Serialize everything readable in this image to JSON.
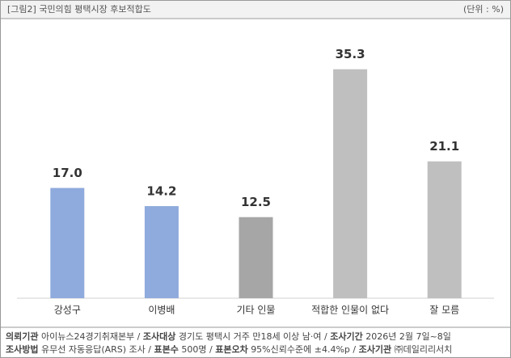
{
  "chart_data": {
    "type": "bar",
    "title": "[그림2] 국민의힘 평택시장 후보적합도",
    "unit": "(단위 : %)",
    "categories": [
      "강성구",
      "이병배",
      "기타 인물",
      "적합한 인물이 없다",
      "잘 모름"
    ],
    "values": [
      17.0,
      14.2,
      12.5,
      35.3,
      21.1
    ],
    "value_labels": [
      "17.0",
      "14.2",
      "12.5",
      "35.3",
      "21.1"
    ],
    "colors": [
      "#8faadc",
      "#8faadc",
      "#a6a6a6",
      "#bfbfbf",
      "#bfbfbf"
    ],
    "ylim": [
      0,
      40
    ],
    "grid": false
  },
  "footer": [
    [
      {
        "label": "의뢰기관",
        "value": "아이뉴스24경기취재본부"
      },
      {
        "label": "조사대상",
        "value": "경기도 평택시 거주 만18세 이상 남·여"
      },
      {
        "label": "조사기간",
        "value": "2026년 2월 7일~8일"
      }
    ],
    [
      {
        "label": "조사방법",
        "value": "유무선 자동응답(ARS) 조사"
      },
      {
        "label": "표본수",
        "value": "500명"
      },
      {
        "label": "표본오차",
        "value": "95%신뢰수준에 ±4.4%p"
      },
      {
        "label": "조사기관",
        "value": "㈜데일리리서치"
      }
    ]
  ]
}
